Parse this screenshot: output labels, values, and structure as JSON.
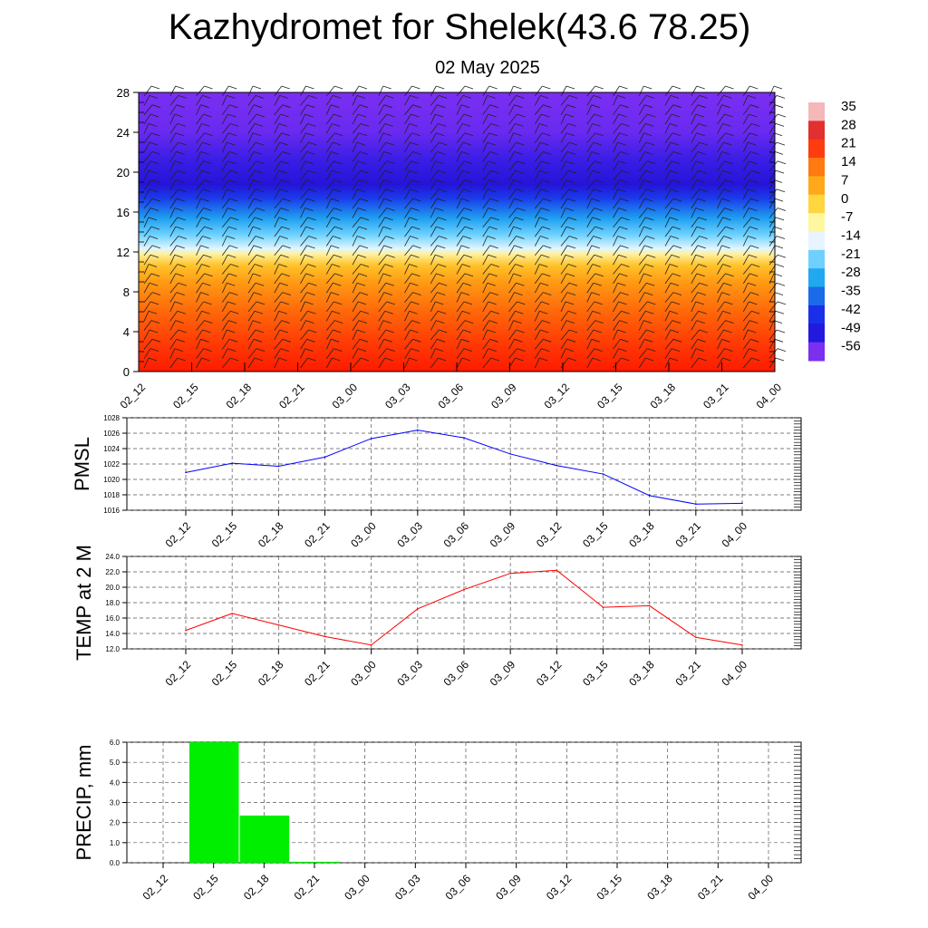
{
  "title": "Kazhydromet for Shelek(43.6 78.25)",
  "subtitle": "02 May 2025",
  "chart_data": [
    {
      "type": "heatmap",
      "y_ticks": [
        "0",
        "4",
        "8",
        "12",
        "16",
        "20",
        "24",
        "28"
      ],
      "x_ticks": [
        "02_12",
        "02_15",
        "02_18",
        "02_21",
        "03_00",
        "03_03",
        "03_06",
        "03_09",
        "03_12",
        "03_15",
        "03_18",
        "03_21",
        "04_00"
      ],
      "ylim": [
        0,
        28
      ],
      "colorbar_labels": [
        "35",
        "28",
        "21",
        "14",
        "7",
        "0",
        "-7",
        "-14",
        "-21",
        "-28",
        "-35",
        "-42",
        "-49",
        "-56"
      ],
      "colorbar_colors": [
        "#f4b8b8",
        "#e23030",
        "#ff3b10",
        "#ff7a10",
        "#ffa91a",
        "#ffd640",
        "#fff6a0",
        "#e8f4ff",
        "#6fd0ff",
        "#20a8f0",
        "#1b6be8",
        "#1a30e8",
        "#2218e0",
        "#7d2ff0"
      ],
      "has_wind_barbs": true
    },
    {
      "type": "line",
      "ylabel": "PMSL",
      "x": [
        "02_12",
        "02_15",
        "02_18",
        "02_21",
        "03_00",
        "03_03",
        "03_06",
        "03_09",
        "03_12",
        "03_15",
        "03_18",
        "03_21",
        "04_00"
      ],
      "series": [
        {
          "values": [
            1020.9,
            1022.1,
            1021.7,
            1022.9,
            1025.3,
            1026.4,
            1025.4,
            1023.3,
            1021.8,
            1020.7,
            1017.9,
            1016.8,
            1016.9
          ],
          "color": "#0000ff"
        }
      ],
      "y_ticks": [
        "1016",
        "1018",
        "1020",
        "1022",
        "1024",
        "1026",
        "1028"
      ],
      "ylim": [
        1016,
        1028
      ],
      "grid": true
    },
    {
      "type": "line",
      "ylabel": "TEMP at 2 M",
      "x": [
        "02_12",
        "02_15",
        "02_18",
        "02_21",
        "03_00",
        "03_03",
        "03_06",
        "03_09",
        "03_12",
        "03_15",
        "03_18",
        "03_21",
        "04_00"
      ],
      "series": [
        {
          "values": [
            14.4,
            16.6,
            15.1,
            13.6,
            12.5,
            17.2,
            19.7,
            21.8,
            22.2,
            17.4,
            17.6,
            13.5,
            12.5
          ],
          "color": "#ff0000"
        }
      ],
      "y_ticks": [
        "12.0",
        "14.0",
        "16.0",
        "18.0",
        "20.0",
        "22.0",
        "24.0"
      ],
      "ylim": [
        12,
        24
      ],
      "grid": true
    },
    {
      "type": "bar",
      "ylabel": "PRECIP, mm",
      "categories": [
        "02_12",
        "02_15",
        "02_18",
        "02_21",
        "03_00",
        "03_03",
        "03_06",
        "03_09",
        "03_12",
        "03_15",
        "03_18",
        "03_21",
        "04_00"
      ],
      "values": [
        0,
        6.0,
        2.35,
        0.05,
        0,
        0,
        0,
        0,
        0,
        0,
        0,
        0,
        0
      ],
      "color": "#00ee00",
      "y_ticks": [
        "0.0",
        "1.0",
        "2.0",
        "3.0",
        "4.0",
        "5.0",
        "6.0"
      ],
      "ylim": [
        0,
        6
      ],
      "grid": true
    }
  ]
}
